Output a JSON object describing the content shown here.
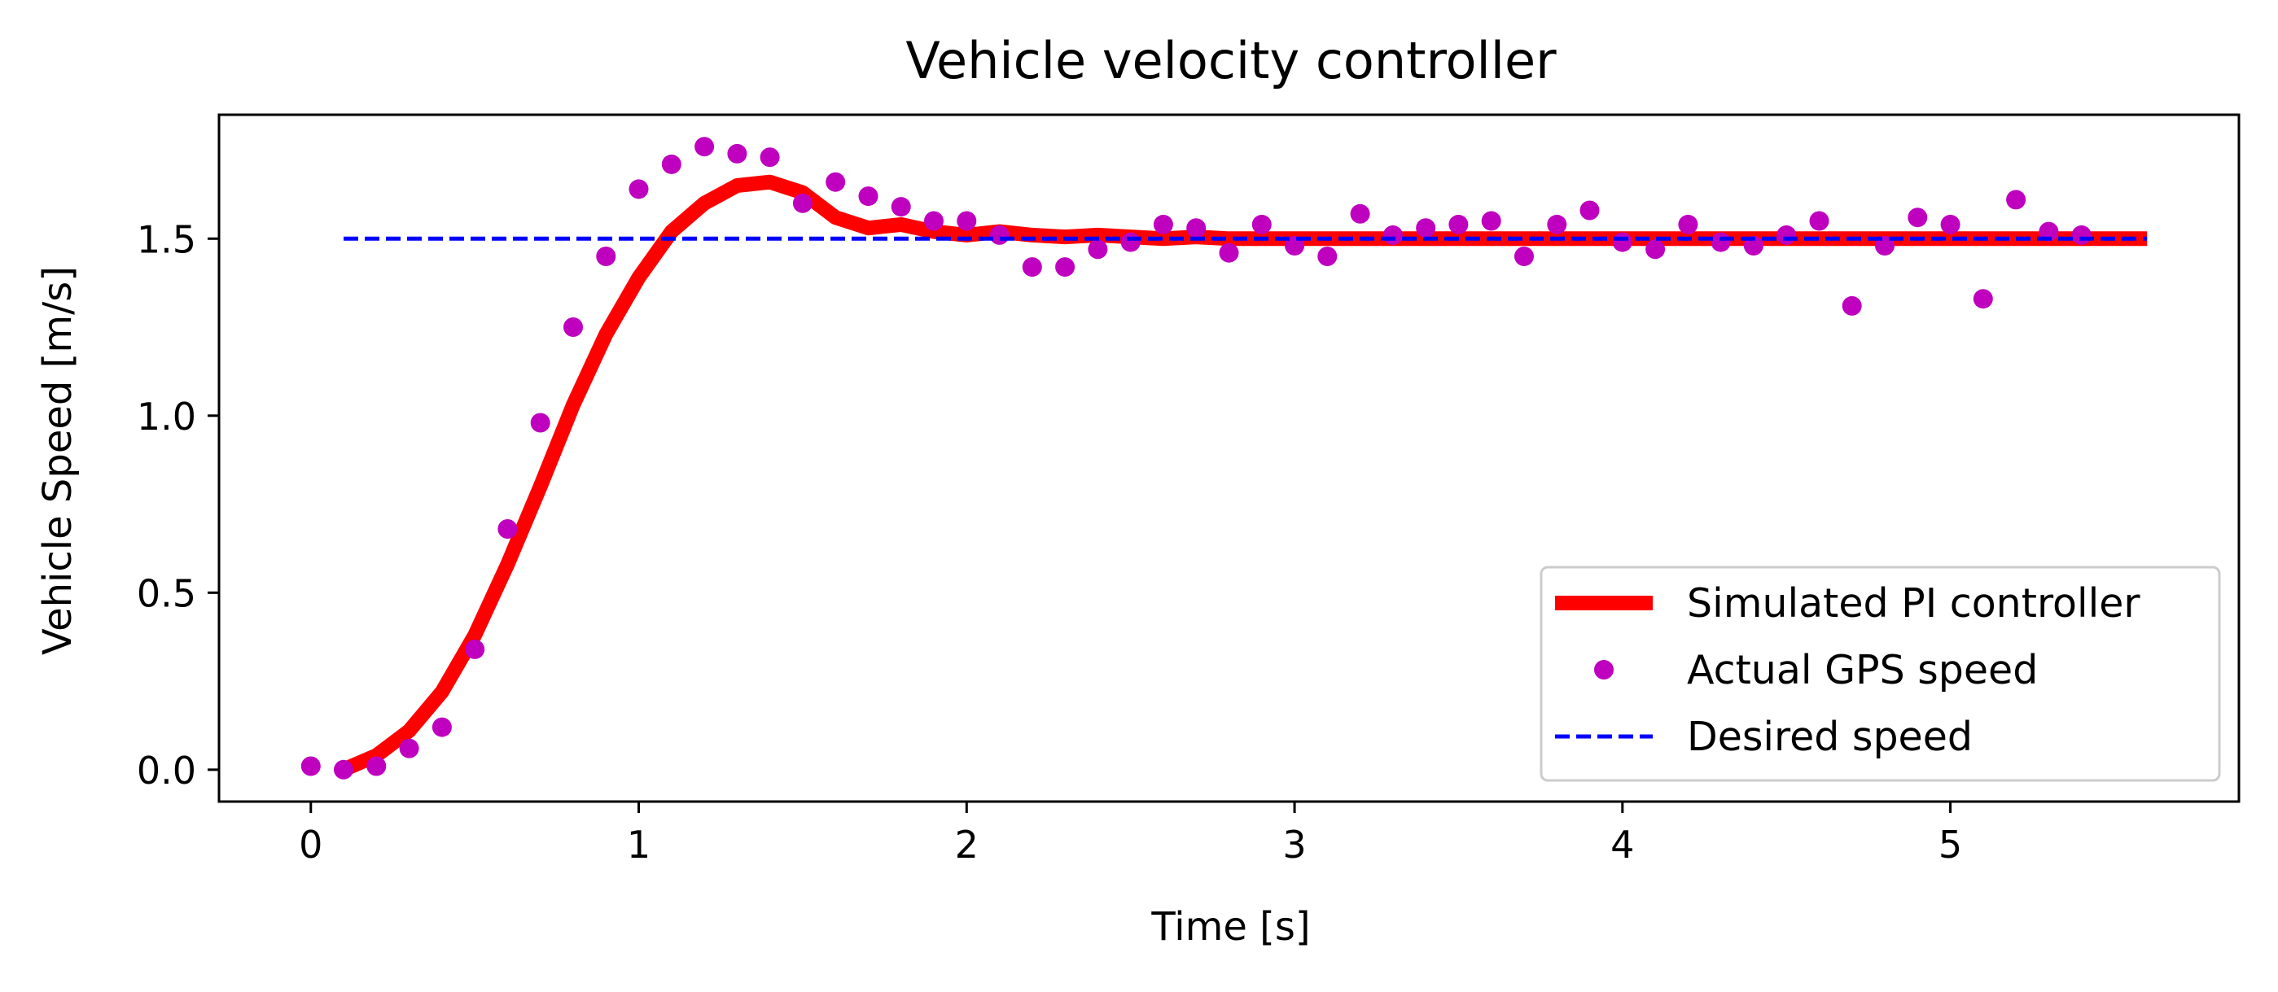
{
  "chart_data": {
    "type": "line",
    "title": "Vehicle velocity controller",
    "xlabel": "Time [s]",
    "ylabel": "Vehicle Speed [m/s]",
    "xlim": [
      -0.28,
      5.88
    ],
    "ylim": [
      -0.09,
      1.85
    ],
    "xticks": [
      {
        "value": 0,
        "label": "0"
      },
      {
        "value": 1,
        "label": "1"
      },
      {
        "value": 2,
        "label": "2"
      },
      {
        "value": 3,
        "label": "3"
      },
      {
        "value": 4,
        "label": "4"
      },
      {
        "value": 5,
        "label": "5"
      }
    ],
    "yticks": [
      {
        "value": 0.0,
        "label": "0.0"
      },
      {
        "value": 0.5,
        "label": "0.5"
      },
      {
        "value": 1.0,
        "label": "1.0"
      },
      {
        "value": 1.5,
        "label": "1.5"
      }
    ],
    "grid": false,
    "legend_position": "lower-right",
    "series": [
      {
        "name": "Simulated PI controller",
        "style": "line",
        "color": "#ff0000",
        "x": [
          0.1,
          0.2,
          0.3,
          0.4,
          0.5,
          0.6,
          0.7,
          0.8,
          0.9,
          1.0,
          1.1,
          1.2,
          1.3,
          1.4,
          1.5,
          1.6,
          1.7,
          1.8,
          1.9,
          2.0,
          2.1,
          2.2,
          2.3,
          2.4,
          2.5,
          2.6,
          2.7,
          2.8,
          2.9,
          3.0,
          3.5,
          4.0,
          4.5,
          5.0,
          5.6
        ],
        "y": [
          0.0,
          0.04,
          0.11,
          0.22,
          0.38,
          0.58,
          0.8,
          1.03,
          1.23,
          1.39,
          1.52,
          1.6,
          1.65,
          1.66,
          1.63,
          1.56,
          1.53,
          1.54,
          1.52,
          1.51,
          1.52,
          1.51,
          1.505,
          1.51,
          1.505,
          1.5,
          1.505,
          1.5,
          1.5,
          1.5,
          1.5,
          1.5,
          1.5,
          1.5,
          1.5
        ]
      },
      {
        "name": "Actual GPS speed",
        "style": "markers",
        "color": "#bf00bf",
        "x": [
          0.0,
          0.1,
          0.2,
          0.3,
          0.4,
          0.5,
          0.6,
          0.7,
          0.8,
          0.9,
          1.0,
          1.1,
          1.2,
          1.3,
          1.4,
          1.5,
          1.6,
          1.7,
          1.8,
          1.9,
          2.0,
          2.1,
          2.2,
          2.3,
          2.4,
          2.5,
          2.6,
          2.7,
          2.8,
          2.9,
          3.0,
          3.1,
          3.2,
          3.3,
          3.4,
          3.5,
          3.6,
          3.7,
          3.8,
          3.9,
          4.0,
          4.1,
          4.2,
          4.3,
          4.4,
          4.5,
          4.6,
          4.7,
          4.8,
          4.9,
          5.0,
          5.1,
          5.2,
          5.3,
          5.4
        ],
        "y": [
          0.01,
          0.0,
          0.01,
          0.06,
          0.12,
          0.34,
          0.68,
          0.98,
          1.25,
          1.45,
          1.64,
          1.71,
          1.76,
          1.74,
          1.73,
          1.6,
          1.66,
          1.62,
          1.59,
          1.55,
          1.55,
          1.51,
          1.42,
          1.42,
          1.47,
          1.49,
          1.54,
          1.53,
          1.46,
          1.54,
          1.48,
          1.45,
          1.57,
          1.51,
          1.53,
          1.54,
          1.55,
          1.45,
          1.54,
          1.58,
          1.49,
          1.47,
          1.54,
          1.49,
          1.48,
          1.51,
          1.55,
          1.31,
          1.48,
          1.56,
          1.54,
          1.33,
          1.61,
          1.52,
          1.51
        ]
      },
      {
        "name": "Desired speed",
        "style": "dashed",
        "color": "#0000ff",
        "x": [
          0.1,
          5.6
        ],
        "y": [
          1.5,
          1.5
        ]
      }
    ]
  }
}
